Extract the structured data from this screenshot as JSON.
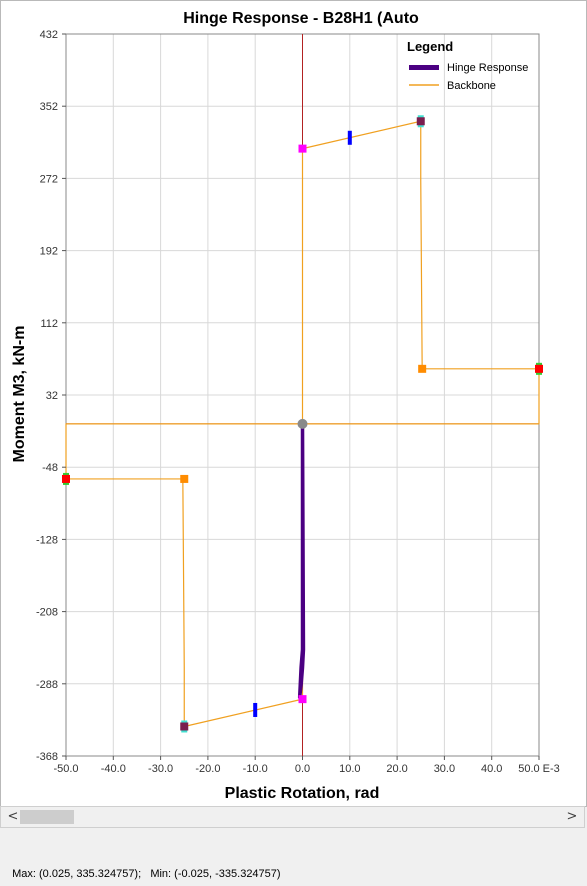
{
  "chart_data": {
    "type": "line",
    "title": "Hinge Response - B28H1 (Auto",
    "xlabel": "Plastic Rotation, rad",
    "ylabel": "Moment M3, kN-m",
    "xlim": [
      -0.05,
      0.05
    ],
    "ylim": [
      -368,
      432
    ],
    "x_ticks": [
      "-50.0",
      "-40.0",
      "-30.0",
      "-20.0",
      "-10.0",
      "0.0",
      "10.0",
      "20.0",
      "30.0",
      "40.0",
      "50.0 E-3"
    ],
    "y_ticks": [
      "432",
      "352",
      "272",
      "192",
      "112",
      "32",
      "-48",
      "-128",
      "-208",
      "-288",
      "-368"
    ],
    "legend": {
      "title": "Legend",
      "position": "top-right",
      "entries": [
        "Hinge Response",
        "Backbone"
      ]
    },
    "grid": true,
    "series": [
      {
        "name": "Backbone",
        "color": "#f0a020",
        "points": [
          [
            0.0,
            0.0
          ],
          [
            0.0,
            305.0
          ],
          [
            0.025,
            335.3
          ],
          [
            0.025,
            270.0
          ],
          [
            0.0253,
            61.0
          ],
          [
            0.05,
            61.0
          ],
          [
            0.05,
            0.0
          ],
          [
            0.0,
            0.0
          ],
          [
            0.0,
            -305.0
          ],
          [
            -0.025,
            -335.3
          ],
          [
            -0.025,
            -270.0
          ],
          [
            -0.0253,
            -61.0
          ],
          [
            -0.05,
            -61.0
          ],
          [
            -0.05,
            0.0
          ],
          [
            0.0,
            0.0
          ]
        ]
      },
      {
        "name": "Hinge Response",
        "color": "#4b0082",
        "points": [
          [
            0.0,
            0.0
          ],
          [
            0.0002,
            -250.0
          ],
          [
            0.0,
            -270.0
          ],
          [
            -0.0003,
            -290.0
          ],
          [
            -0.0006,
            -303.0
          ],
          [
            -0.0003,
            -270.0
          ],
          [
            0.0,
            -250.0
          ],
          [
            0.0,
            0.0
          ]
        ]
      }
    ],
    "markers": [
      {
        "label": "B",
        "color": "#ff00ff",
        "points": [
          [
            0.0,
            305.0
          ],
          [
            0.0,
            -305.0
          ]
        ]
      },
      {
        "label": "IO",
        "color": "#0000ff",
        "points": [
          [
            0.01,
            317.0
          ],
          [
            -0.01,
            -317.0
          ]
        ]
      },
      {
        "label": "C",
        "color": "#7a1e4e",
        "points": [
          [
            0.025,
            335.3
          ],
          [
            -0.025,
            -335.3
          ]
        ]
      },
      {
        "label": "D",
        "color": "#ff8c00",
        "points": [
          [
            0.0253,
            61.0
          ],
          [
            -0.025,
            -61.0
          ]
        ]
      },
      {
        "label": "E",
        "color": "#ff0000",
        "points": [
          [
            0.05,
            61.0
          ],
          [
            -0.05,
            -61.0
          ]
        ]
      }
    ]
  },
  "status": {
    "text": "Max: (0.025, 335.324757);   Min: (-0.025, -335.324757)"
  },
  "scrollbar": {
    "left_arrow": "<",
    "right_arrow": ">"
  }
}
